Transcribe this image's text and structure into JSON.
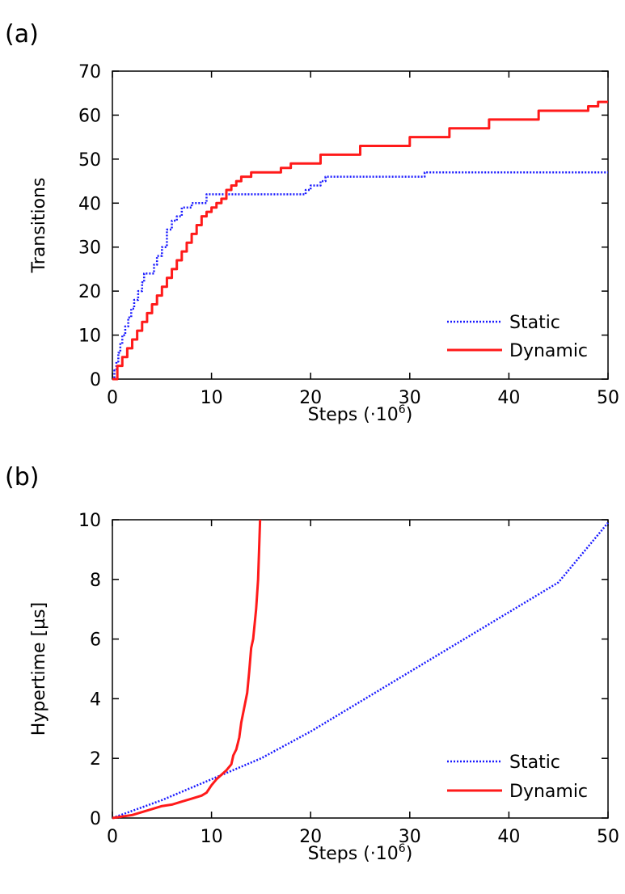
{
  "chart_data": [
    {
      "panel_label": "(a)",
      "type": "line",
      "xlabel": "Steps (·10",
      "xlabel_exp": "6",
      "xlabel_close": ")",
      "ylabel": "Transitions",
      "xlim": [
        0,
        50
      ],
      "ylim": [
        0,
        70
      ],
      "xticks": [
        0,
        10,
        20,
        30,
        40,
        50
      ],
      "yticks": [
        0,
        10,
        20,
        30,
        40,
        50,
        60,
        70
      ],
      "legend_position": "bottom-right",
      "series": [
        {
          "name": "Static",
          "color": "#1a1aff",
          "style": "dotted",
          "step": true,
          "x": [
            0,
            0.2,
            0.4,
            0.6,
            0.8,
            1.0,
            1.3,
            1.6,
            1.9,
            2.2,
            2.6,
            3.0,
            3.2,
            4.2,
            4.5,
            5.0,
            5.5,
            6.0,
            6.5,
            7.0,
            7.5,
            8.0,
            8.5,
            9.0,
            9.5,
            11.0,
            12.0,
            19.5,
            20.0,
            21.0,
            21.5,
            31.0,
            31.5,
            50.0
          ],
          "y": [
            0,
            2,
            4,
            6,
            8,
            10,
            12,
            14,
            16,
            18,
            20,
            22,
            24,
            26,
            28,
            30,
            34,
            36,
            37,
            39,
            39,
            40,
            40,
            40,
            42,
            42,
            42,
            43,
            44,
            45,
            46,
            46,
            47,
            47
          ]
        },
        {
          "name": "Dynamic",
          "color": "#ff1a1a",
          "style": "solid",
          "step": true,
          "x": [
            0,
            0.5,
            1.0,
            1.5,
            2.0,
            2.5,
            3.0,
            3.5,
            4.0,
            4.5,
            5.0,
            5.5,
            6.0,
            6.5,
            7.0,
            7.5,
            8.0,
            8.5,
            9.0,
            9.5,
            10.0,
            10.5,
            11.0,
            11.5,
            12.0,
            12.5,
            13.0,
            14.0,
            17.0,
            18.0,
            21.0,
            25.0,
            30.0,
            34.0,
            38.0,
            43.0,
            48.0,
            49.0,
            50.0
          ],
          "y": [
            0,
            3,
            5,
            7,
            9,
            11,
            13,
            15,
            17,
            19,
            21,
            23,
            25,
            27,
            29,
            31,
            33,
            35,
            37,
            38,
            39,
            40,
            41,
            43,
            44,
            45,
            46,
            47,
            48,
            49,
            51,
            53,
            55,
            57,
            59,
            61,
            62,
            63,
            63
          ]
        }
      ]
    },
    {
      "panel_label": "(b)",
      "type": "line",
      "xlabel": "Steps (·10",
      "xlabel_exp": "6",
      "xlabel_close": ")",
      "ylabel": "Hypertime [µs]",
      "xlim": [
        0,
        50
      ],
      "ylim": [
        0,
        10
      ],
      "xticks": [
        0,
        10,
        20,
        30,
        40,
        50
      ],
      "yticks": [
        0,
        2,
        4,
        6,
        8,
        10
      ],
      "legend_position": "bottom-right",
      "series": [
        {
          "name": "Static",
          "color": "#1a1aff",
          "style": "dotted",
          "step": false,
          "x": [
            0,
            5,
            10,
            15,
            20,
            25,
            30,
            35,
            40,
            45,
            50
          ],
          "y": [
            0,
            0.6,
            1.3,
            2.0,
            2.9,
            3.9,
            4.9,
            5.9,
            6.9,
            7.9,
            9.9
          ]
        },
        {
          "name": "Dynamic",
          "color": "#ff1a1a",
          "style": "solid",
          "step": false,
          "x": [
            0,
            2,
            4,
            5,
            6,
            7,
            8,
            9,
            9.5,
            10,
            10.5,
            11,
            11.5,
            12,
            12.2,
            12.5,
            12.8,
            13,
            13.3,
            13.6,
            13.8,
            14,
            14.2,
            14.5,
            14.7,
            14.8,
            14.9
          ],
          "y": [
            0,
            0.1,
            0.3,
            0.4,
            0.45,
            0.55,
            0.65,
            0.75,
            0.85,
            1.1,
            1.3,
            1.45,
            1.6,
            1.8,
            2.1,
            2.3,
            2.7,
            3.2,
            3.7,
            4.2,
            4.9,
            5.7,
            6.0,
            7.0,
            8.0,
            9.0,
            10.0
          ]
        }
      ]
    }
  ]
}
